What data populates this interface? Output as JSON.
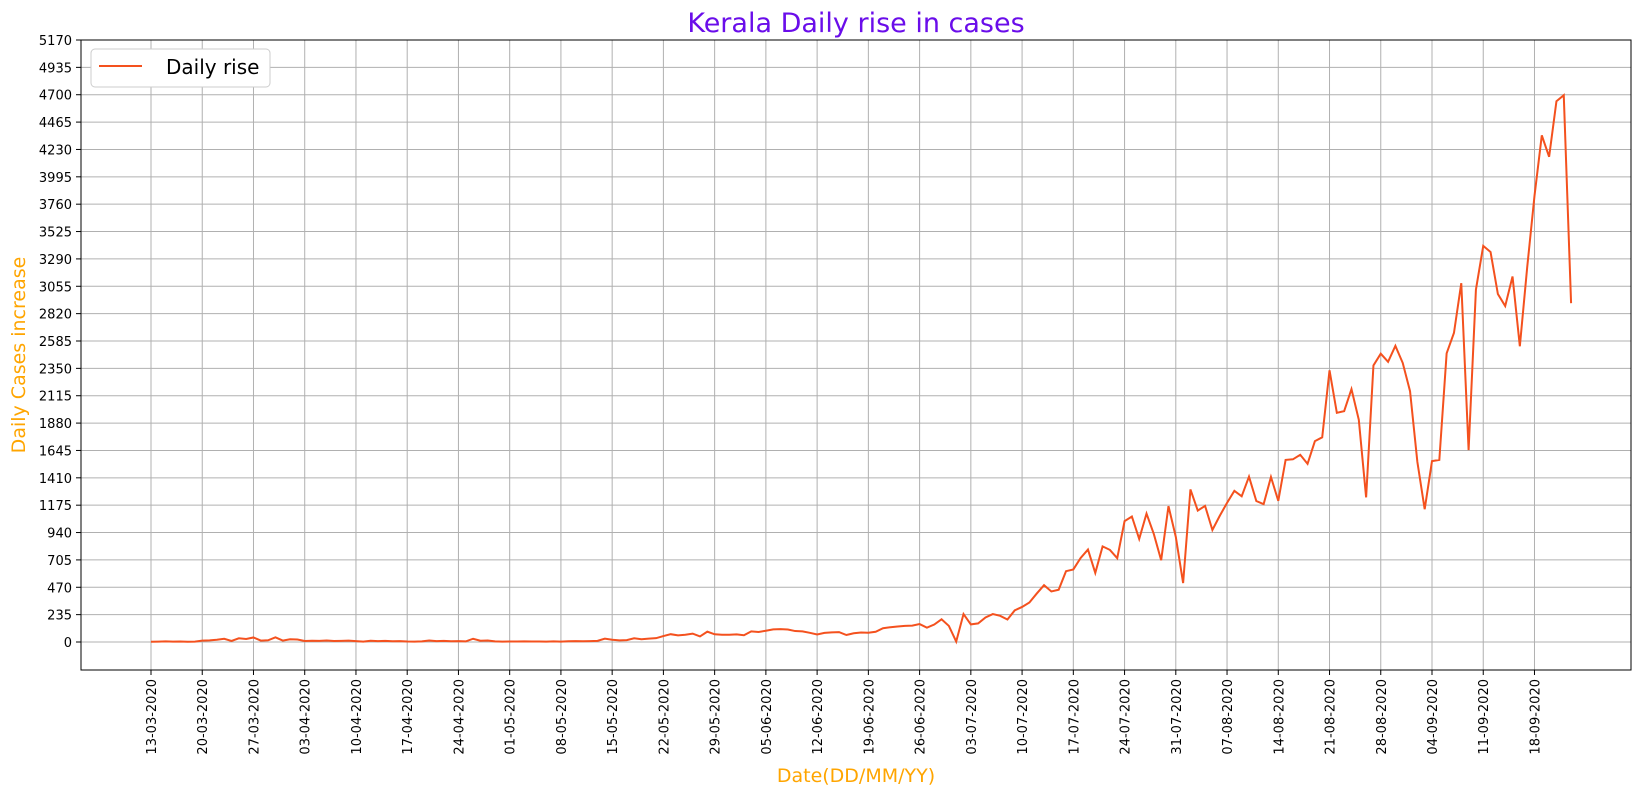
{
  "colors": {
    "title": "#6a0dea",
    "axis_labels": "#ffa500",
    "series": "#f4511e",
    "grid": "#b0b0b0"
  },
  "chart_data": {
    "type": "line",
    "title": "Kerala Daily rise in cases",
    "xlabel": "Date(DD/MM/YY)",
    "ylabel": "Daily Cases increase",
    "grid": true,
    "legend_placement": "top-left",
    "ylim": [
      0,
      5170
    ],
    "y_ticks": [
      0,
      235,
      470,
      705,
      940,
      1175,
      1410,
      1645,
      1880,
      2115,
      2350,
      2585,
      2820,
      3055,
      3290,
      3525,
      3760,
      3995,
      4230,
      4465,
      4700,
      4935,
      5170
    ],
    "x_ticks": [
      "13-03-2020",
      "20-03-2020",
      "27-03-2020",
      "03-04-2020",
      "10-04-2020",
      "17-04-2020",
      "24-04-2020",
      "01-05-2020",
      "08-05-2020",
      "15-05-2020",
      "22-05-2020",
      "29-05-2020",
      "05-06-2020",
      "12-06-2020",
      "19-06-2020",
      "26-06-2020",
      "03-07-2020",
      "10-07-2020",
      "17-07-2020",
      "24-07-2020",
      "31-07-2020",
      "07-08-2020",
      "14-08-2020",
      "21-08-2020",
      "28-08-2020",
      "04-09-2020",
      "11-09-2020",
      "18-09-2020"
    ],
    "x_start": "13-03-2020",
    "series": [
      {
        "name": "Daily rise",
        "values": [
          2,
          3,
          5,
          3,
          4,
          2,
          3,
          12,
          14,
          19,
          28,
          9,
          32,
          26,
          39,
          12,
          15,
          40,
          12,
          24,
          21,
          9,
          11,
          10,
          13,
          9,
          10,
          12,
          8,
          3,
          11,
          7,
          10,
          6,
          8,
          4,
          3,
          5,
          13,
          8,
          10,
          6,
          8,
          5,
          28,
          11,
          13,
          5,
          3,
          4,
          4,
          5,
          4,
          4,
          3,
          5,
          3,
          6,
          8,
          6,
          8,
          10,
          29,
          19,
          14,
          16,
          32,
          24,
          29,
          33,
          51,
          67,
          57,
          62,
          72,
          48,
          89,
          66,
          62,
          62,
          65,
          58,
          91,
          86,
          97,
          108,
          111,
          107,
          94,
          91,
          79,
          65,
          78,
          83,
          85,
          60,
          75,
          82,
          79,
          88,
          118,
          127,
          133,
          138,
          141,
          154,
          123,
          150,
          195,
          138,
          4,
          240,
          151,
          160,
          211,
          240,
          225,
          193,
          272,
          301,
          339,
          416,
          488,
          434,
          449,
          608,
          623,
          722,
          794,
          593,
          821,
          791,
          720,
          1038,
          1078,
          885,
          1103,
          927,
          702,
          1167,
          903,
          506,
          1310,
          1129,
          1169,
          962,
          1083,
          1195,
          1298,
          1251,
          1420,
          1211,
          1184,
          1417,
          1212,
          1564,
          1569,
          1608,
          1530,
          1725,
          1758,
          2333,
          1968,
          1983,
          2172,
          1908,
          1242,
          2375,
          2476,
          2406,
          2543,
          2397,
          2154,
          1547,
          1140,
          1553,
          1564,
          2479,
          2655,
          3082,
          1648,
          3026,
          3402,
          3349,
          2988,
          2885,
          3139,
          2540,
          3215,
          3830,
          4351,
          4167,
          4644,
          4696,
          2910
        ]
      }
    ]
  }
}
